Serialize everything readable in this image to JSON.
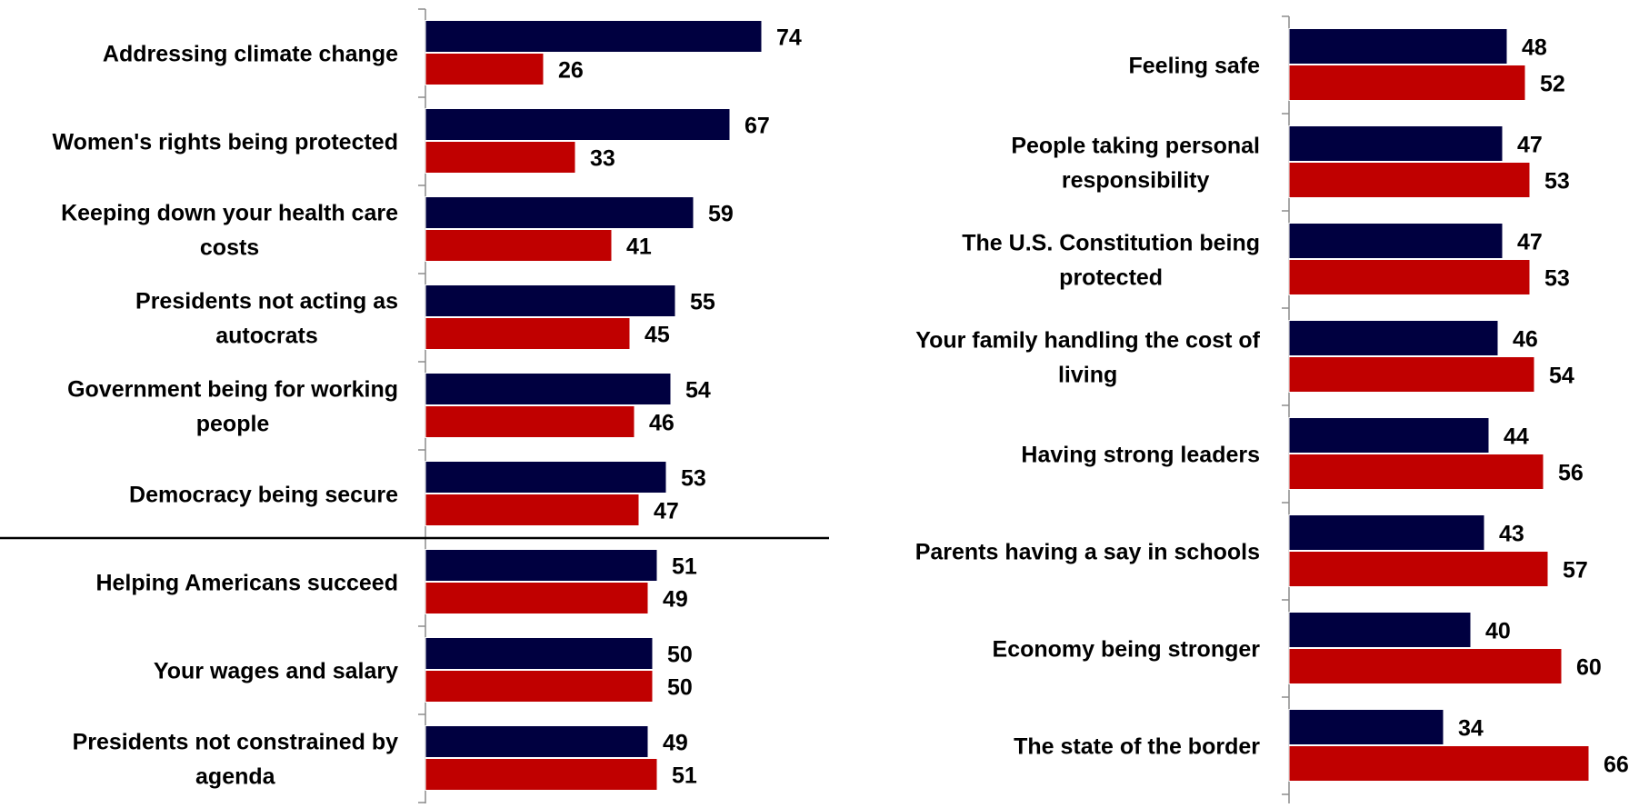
{
  "chart_data": [
    {
      "type": "bar",
      "orientation": "horizontal",
      "categories": [
        "Addressing climate change",
        "Women's rights  being protected",
        "Keeping down your health care costs",
        "Presidents not acting as autocrats",
        "Government being for working people",
        "Democracy being secure",
        "Helping Americans succeed",
        "Your wages and salary",
        "Presidents not constrained by agenda"
      ],
      "category_lines": [
        [
          "Addressing climate change"
        ],
        [
          "Women's rights  being protected"
        ],
        [
          "Keeping down your health care",
          "costs"
        ],
        [
          "Presidents not acting as",
          "autocrats"
        ],
        [
          "Government being for working",
          "people"
        ],
        [
          "Democracy being secure"
        ],
        [
          "Helping Americans succeed"
        ],
        [
          "Your wages and salary"
        ],
        [
          "Presidents not constrained by",
          "agenda"
        ]
      ],
      "series": [
        {
          "color": "#000040",
          "values": [
            74,
            67,
            59,
            55,
            54,
            53,
            51,
            50,
            49
          ]
        },
        {
          "color": "#C00000",
          "values": [
            26,
            33,
            41,
            45,
            46,
            47,
            49,
            50,
            51
          ]
        }
      ],
      "xlim": [
        0,
        100
      ],
      "divider_after_index": 5,
      "legend": "none",
      "grid": false
    },
    {
      "type": "bar",
      "orientation": "horizontal",
      "categories": [
        "Feeling safe",
        "People taking personal responsibility",
        "The U.S. Constitution being protected",
        "Your family handling the cost of living",
        "Having strong leaders",
        "Parents having a say in schools",
        "Economy being stronger",
        "The state of the border"
      ],
      "category_lines": [
        [
          "Feeling safe"
        ],
        [
          "People taking personal",
          "responsibility"
        ],
        [
          "The U.S. Constitution being",
          "protected"
        ],
        [
          "Your family handling the cost of",
          "living"
        ],
        [
          "Having strong leaders"
        ],
        [
          "Parents having a say in schools"
        ],
        [
          "Economy being stronger"
        ],
        [
          "The state of the border"
        ]
      ],
      "series": [
        {
          "color": "#000040",
          "values": [
            48,
            47,
            47,
            46,
            44,
            43,
            40,
            34
          ]
        },
        {
          "color": "#C00000",
          "values": [
            52,
            53,
            53,
            54,
            56,
            57,
            60,
            66
          ]
        }
      ],
      "xlim": [
        0,
        100
      ],
      "legend": "none",
      "grid": false
    }
  ]
}
